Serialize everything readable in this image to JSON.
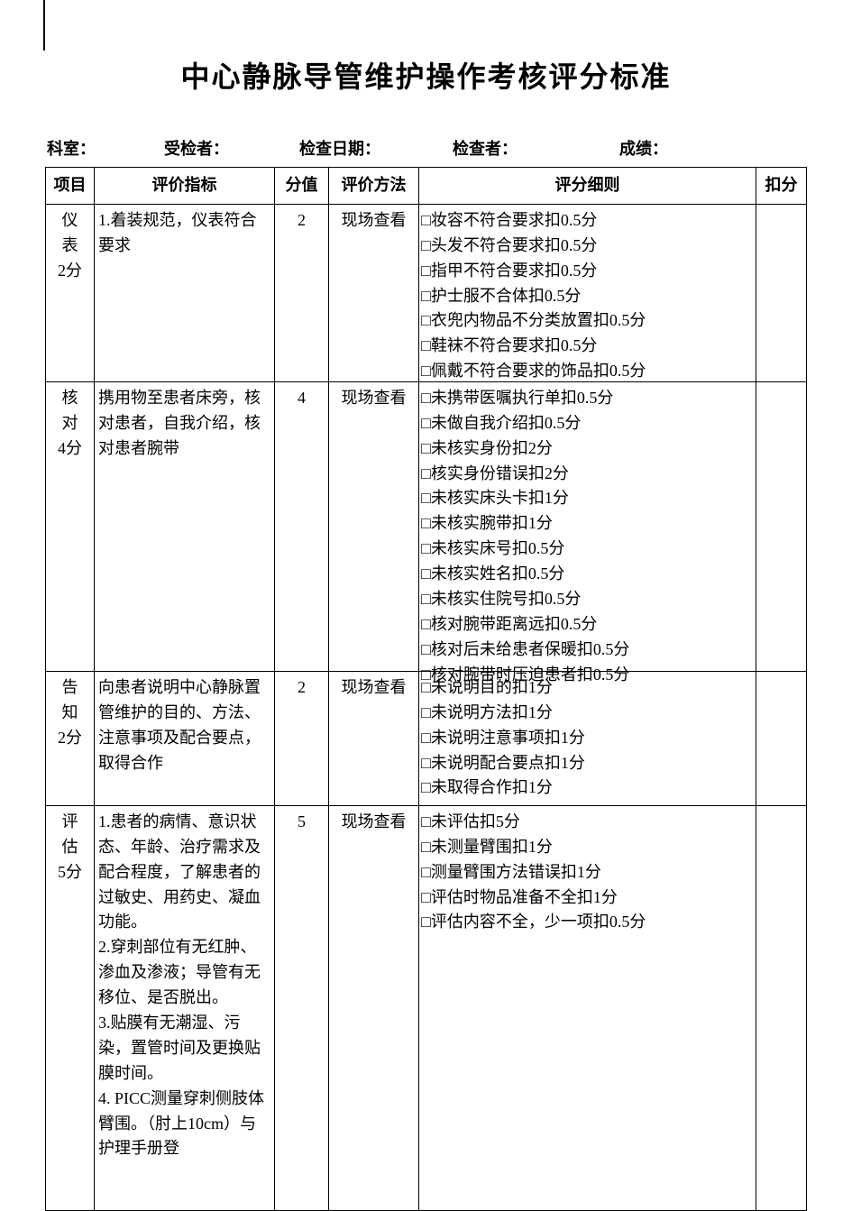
{
  "title": "中心静脉导管维护操作考核评分标准",
  "form": {
    "dept": "科室：",
    "subject": "受检者：",
    "date": "检查日期：",
    "checker": "检查者：",
    "score": "成绩："
  },
  "headers": {
    "item": "项目",
    "indicator": "评价指标",
    "score": "分值",
    "method": "评价方法",
    "detail": "评分细则",
    "deduct": "扣分"
  },
  "rows": [
    {
      "item_lines": [
        "仪",
        "表",
        "2分"
      ],
      "indicator": "1.着装规范，仪表符合要求",
      "score": "2",
      "method": "现场查看",
      "details": [
        "□妆容不符合要求扣0.5分",
        "□头发不符合要求扣0.5分",
        "□指甲不符合要求扣0.5分",
        "□护士服不合体扣0.5分",
        "□衣兜内物品不分类放置扣0.5分",
        "□鞋袜不符合要求扣0.5分",
        "□佩戴不符合要求的饰品扣0.5分"
      ]
    },
    {
      "item_lines": [
        "核",
        "对",
        "4分"
      ],
      "indicator": "携用物至患者床旁，核对患者，自我介绍，核对患者腕带",
      "score": "4",
      "method": "现场查看",
      "details": [
        "□未携带医嘱执行单扣0.5分",
        "□未做自我介绍扣0.5分",
        "□未核实身份扣2分",
        "□核实身份错误扣2分",
        "□未核实床头卡扣1分",
        "□未核实腕带扣1分",
        "□未核实床号扣0.5分",
        "□未核实姓名扣0.5分",
        "□未核实住院号扣0.5分",
        "□核对腕带距离远扣0.5分",
        "□核对后未给患者保暖扣0.5分",
        "□核对腕带时压迫患者扣0.5分"
      ]
    },
    {
      "item_lines": [
        "告",
        "知",
        "2分"
      ],
      "indicator": "向患者说明中心静脉置管维护的目的、方法、注意事项及配合要点，取得合作",
      "score": "2",
      "method": "现场查看",
      "details": [
        "□未说明目的扣1分",
        "□未说明方法扣1分",
        "□未说明注意事项扣1分",
        "□未说明配合要点扣1分",
        "□未取得合作扣1分"
      ]
    },
    {
      "item_lines": [
        "评",
        "估",
        "5分"
      ],
      "indicator": "1.患者的病情、意识状态、年龄、治疗需求及配合程度，了解患者的过敏史、用药史、凝血功能。\n2.穿刺部位有无红肿、渗血及渗液；导管有无移位、是否脱出。\n3.贴膜有无潮湿、污染，置管时间及更换贴膜时间。\n4. PICC测量穿刺侧肢体臂围。（肘上10cm）与护理手册登",
      "score": "5",
      "method": "现场查看",
      "details": [
        "□未评估扣5分",
        "□未测量臂围扣1分",
        "□测量臂围方法错误扣1分",
        "□评估时物品准备不全扣1分",
        "□评估内容不全，少一项扣0.5分"
      ]
    }
  ]
}
